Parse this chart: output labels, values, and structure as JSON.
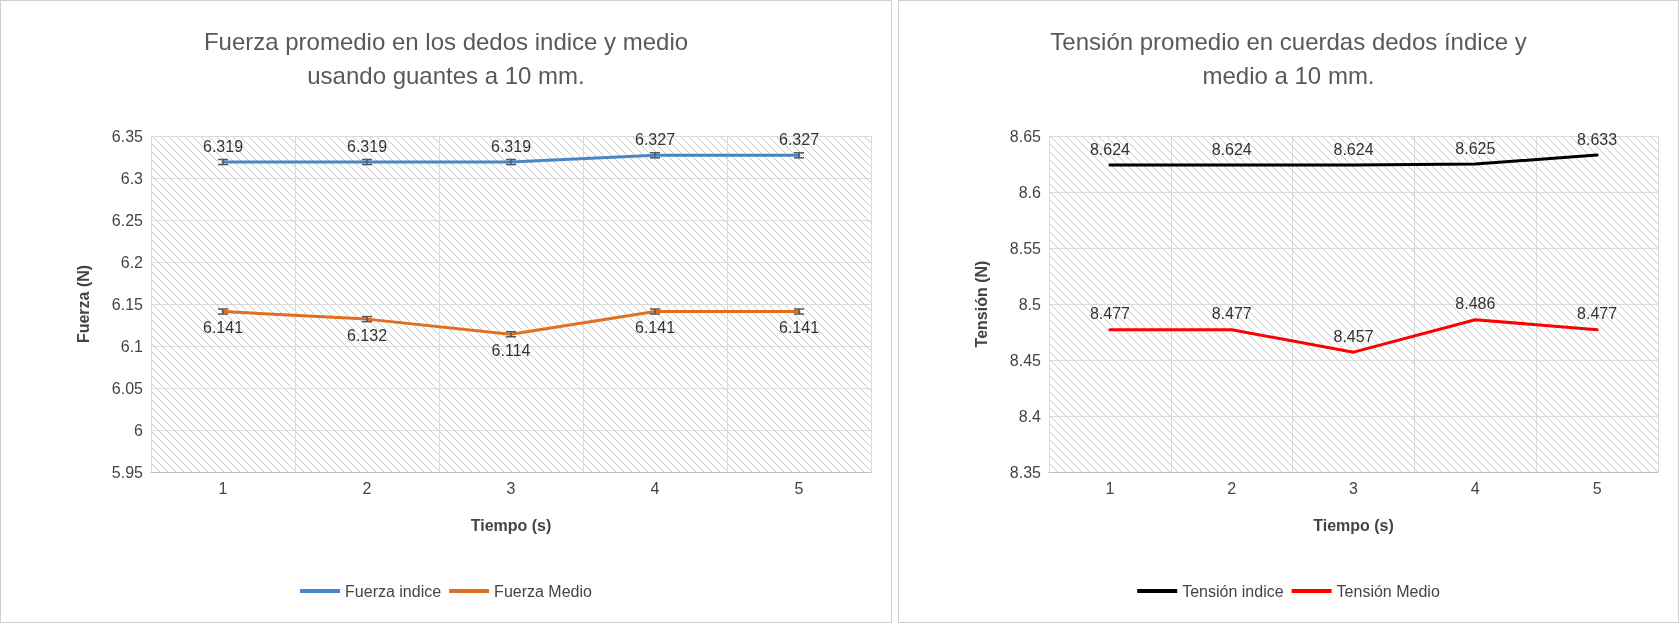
{
  "chart_data": [
    {
      "type": "line",
      "title": "Fuerza promedio en los dedos indice y medio\nusando guantes a 10 mm.",
      "xlabel": "Tiempo (s)",
      "ylabel": "Fuerza (N)",
      "categories": [
        "1",
        "2",
        "3",
        "4",
        "5"
      ],
      "series": [
        {
          "name": "Fuerza indice",
          "color": "#4a86c5",
          "values": [
            6.319,
            6.319,
            6.319,
            6.327,
            6.327
          ],
          "errors": [
            0.003,
            0.003,
            0.003,
            0.003,
            0.003
          ]
        },
        {
          "name": "Fuerza Medio",
          "color": "#e07020",
          "values": [
            6.141,
            6.132,
            6.114,
            6.141,
            6.141
          ],
          "errors": [
            0.003,
            0.003,
            0.003,
            0.003,
            0.003
          ]
        }
      ],
      "ylim": [
        5.95,
        6.35
      ],
      "yticks": [
        5.95,
        6,
        6.05,
        6.1,
        6.15,
        6.2,
        6.25,
        6.3,
        6.35
      ],
      "grid": true,
      "legend": "bottom",
      "marker": "none",
      "line_style": "solid",
      "data_labels": true
    },
    {
      "type": "line",
      "title": "Tensión promedio en cuerdas dedos índice y\nmedio a 10 mm.",
      "xlabel": "Tiempo (s)",
      "ylabel": "Tensión (N)",
      "categories": [
        "1",
        "2",
        "3",
        "4",
        "5"
      ],
      "series": [
        {
          "name": "Tensión indice",
          "color": "#000000",
          "values": [
            8.624,
            8.624,
            8.624,
            8.625,
            8.633
          ]
        },
        {
          "name": "Tensión Medio",
          "color": "#ff0000",
          "values": [
            8.477,
            8.477,
            8.457,
            8.486,
            8.477
          ]
        }
      ],
      "ylim": [
        8.35,
        8.65
      ],
      "yticks": [
        8.35,
        8.4,
        8.45,
        8.5,
        8.55,
        8.6,
        8.65
      ],
      "grid": true,
      "legend": "bottom",
      "marker": "none",
      "line_style": "solid",
      "data_labels": true
    }
  ]
}
